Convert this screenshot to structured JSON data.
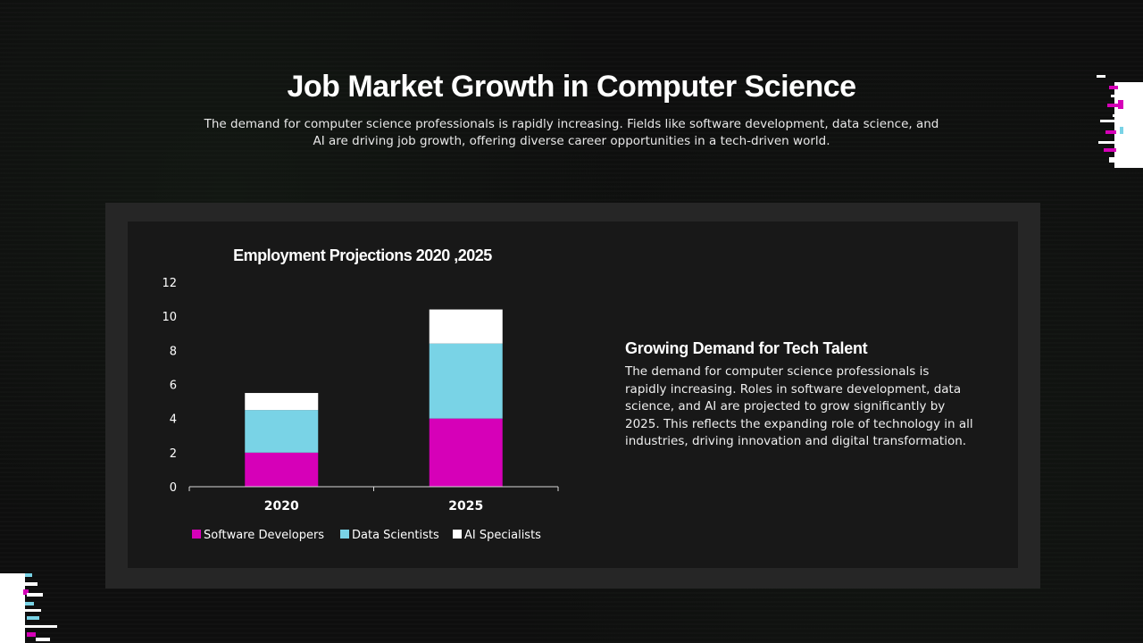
{
  "slide": {
    "title": "Job Market Growth in Computer Science",
    "subtitle": "The demand for computer science professionals is rapidly increasing. Fields like software development, data science, and AI are driving job growth, offering diverse career opportunities in a tech-driven world."
  },
  "side_text": {
    "heading": "Growing Demand for Tech Talent",
    "body": "The demand for computer science professionals is rapidly increasing. Roles in software development, data science, and AI are projected to grow significantly by 2025. This reflects the expanding role of technology in all industries, driving innovation and digital transformation."
  },
  "chart_data": {
    "type": "bar",
    "stacked": true,
    "title": "Employment Projections 2020 ,2025",
    "categories": [
      "2020",
      "2025"
    ],
    "series": [
      {
        "name": "Software Developers",
        "values": [
          2,
          4
        ],
        "color": "#d600b8"
      },
      {
        "name": "Data Scientists",
        "values": [
          2.5,
          4.4
        ],
        "color": "#79d3e6"
      },
      {
        "name": "AI Specialists",
        "values": [
          1,
          2
        ],
        "color": "#ffffff"
      }
    ],
    "ylim": [
      0,
      12
    ],
    "yticks": [
      "0",
      "2",
      "4",
      "6",
      "8",
      "10",
      "12"
    ],
    "xlabel": "",
    "ylabel": "",
    "grid": false,
    "legend": "bottom"
  },
  "colors": {
    "accent_magenta": "#d600b8",
    "accent_cyan": "#79d3e6",
    "panel_outer": "#262626",
    "panel_inner": "#181818"
  }
}
